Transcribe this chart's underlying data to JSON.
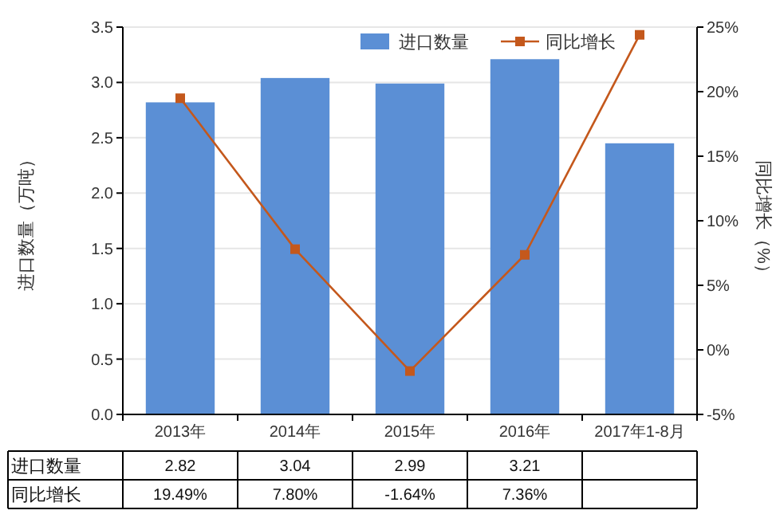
{
  "chart_data": {
    "type": "bar",
    "categories": [
      "2013年",
      "2014年",
      "2015年",
      "2016年",
      "2017年1-8月"
    ],
    "ylabel": "进口数量（万吨）",
    "y2label": "同比增长（%）",
    "ylim": [
      0,
      3.5
    ],
    "yticks": [
      {
        "value": 0,
        "label": "0.0"
      },
      {
        "value": 0.5,
        "label": "0.5"
      },
      {
        "value": 1,
        "label": "1.0"
      },
      {
        "value": 1.5,
        "label": "1.5"
      },
      {
        "value": 2,
        "label": "2.0"
      },
      {
        "value": 2.5,
        "label": "2.5"
      },
      {
        "value": 3,
        "label": "3.0"
      },
      {
        "value": 3.5,
        "label": "3.5"
      }
    ],
    "y2lim": [
      -5,
      25
    ],
    "y2ticks": [
      {
        "value": -5,
        "label": "-5%"
      },
      {
        "value": 0,
        "label": "0%"
      },
      {
        "value": 5,
        "label": "5%"
      },
      {
        "value": 10,
        "label": "10%"
      },
      {
        "value": 15,
        "label": "15%"
      },
      {
        "value": 20,
        "label": "20%"
      },
      {
        "value": 25,
        "label": "25%"
      }
    ],
    "grid": "y",
    "legend": "top right",
    "series": [
      {
        "name": "进口数量",
        "color": "#5b8fd5",
        "values": [
          2.82,
          3.04,
          2.99,
          3.21,
          2.45
        ],
        "value_labels": [
          "2.82",
          "3.04",
          "2.99",
          "3.21",
          null
        ]
      },
      {
        "name": "同比增长",
        "type": "line",
        "axis": "y2",
        "color": "#c4581c",
        "marker": "square",
        "values": [
          19.49,
          7.8,
          -1.64,
          7.36,
          24.4
        ],
        "value_labels": [
          "19.49%",
          "7.80%",
          "-1.64%",
          "7.36%",
          null
        ]
      }
    ]
  }
}
